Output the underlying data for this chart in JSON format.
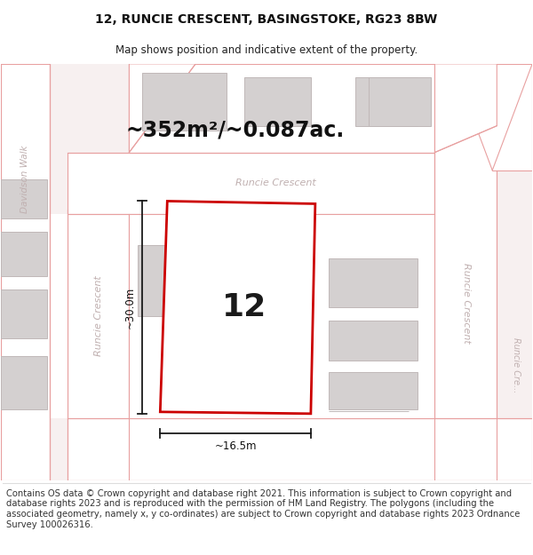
{
  "title": "12, RUNCIE CRESCENT, BASINGSTOKE, RG23 8BW",
  "subtitle": "Map shows position and indicative extent of the property.",
  "area_text": "~352m²/~0.087ac.",
  "number_label": "12",
  "dim_width_label": "~16.5m",
  "dim_height_label": "~30.0m",
  "footer_text": "Contains OS data © Crown copyright and database right 2021. This information is subject to Crown copyright and database rights 2023 and is reproduced with the permission of HM Land Registry. The polygons (including the associated geometry, namely x, y co-ordinates) are subject to Crown copyright and database rights 2023 Ordnance Survey 100026316.",
  "map_bg": "#f7f0f0",
  "road_fill": "#ffffff",
  "road_line": "#e8a0a0",
  "building_fill": "#d4d0d0",
  "building_edge": "#c0b8b8",
  "plot_color": "#cc0000",
  "dim_color": "#1a1a1a",
  "label_color": "#c0b0b0",
  "title_fs": 10,
  "subtitle_fs": 8.5,
  "area_fs": 17,
  "num_fs": 26,
  "dim_fs": 8.5,
  "footer_fs": 7.2
}
